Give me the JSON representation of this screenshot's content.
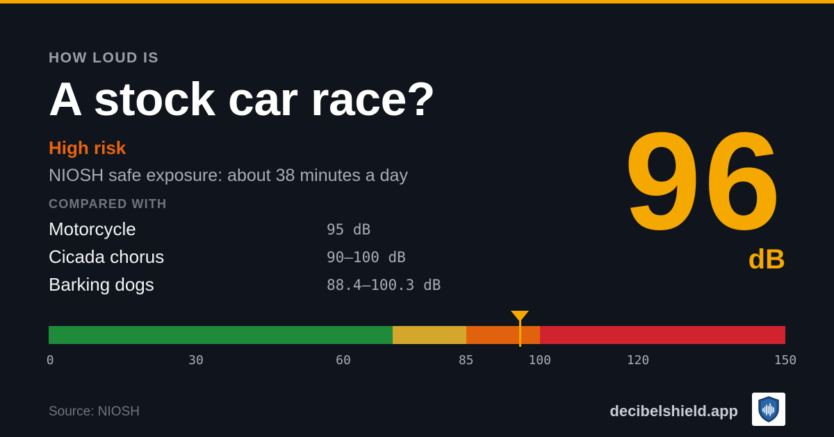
{
  "header": {
    "eyebrow": "HOW LOUD IS",
    "title": "A stock car race?"
  },
  "risk": {
    "label": "High risk",
    "color": "#e8650f",
    "exposure": "NIOSH safe exposure: about 38 minutes a day"
  },
  "comparison": {
    "label": "COMPARED WITH",
    "items": [
      {
        "name": "Motorcycle",
        "value": "95 dB"
      },
      {
        "name": "Cicada chorus",
        "value": "90–100 dB"
      },
      {
        "name": "Barking dogs",
        "value": "88.4–100.3 dB"
      }
    ]
  },
  "reading": {
    "value": "96",
    "unit": "dB"
  },
  "scale": {
    "min": 0,
    "max": 150,
    "marker_value": 96,
    "ticks": [
      "0",
      "30",
      "60",
      "85",
      "100",
      "120",
      "150"
    ],
    "tick_values": [
      0,
      30,
      60,
      85,
      100,
      120,
      150
    ],
    "segments": [
      {
        "from": 0,
        "to": 70,
        "color": "#1f8a3a"
      },
      {
        "from": 70,
        "to": 85,
        "color": "#d4a72c"
      },
      {
        "from": 85,
        "to": 100,
        "color": "#e0620e"
      },
      {
        "from": 100,
        "to": 150,
        "color": "#d0232d"
      }
    ],
    "accent_color": "#f5a800"
  },
  "footer": {
    "source": "Source: NIOSH",
    "brand": "decibelshield.app",
    "logo_icon": "shield-soundwave-icon"
  }
}
